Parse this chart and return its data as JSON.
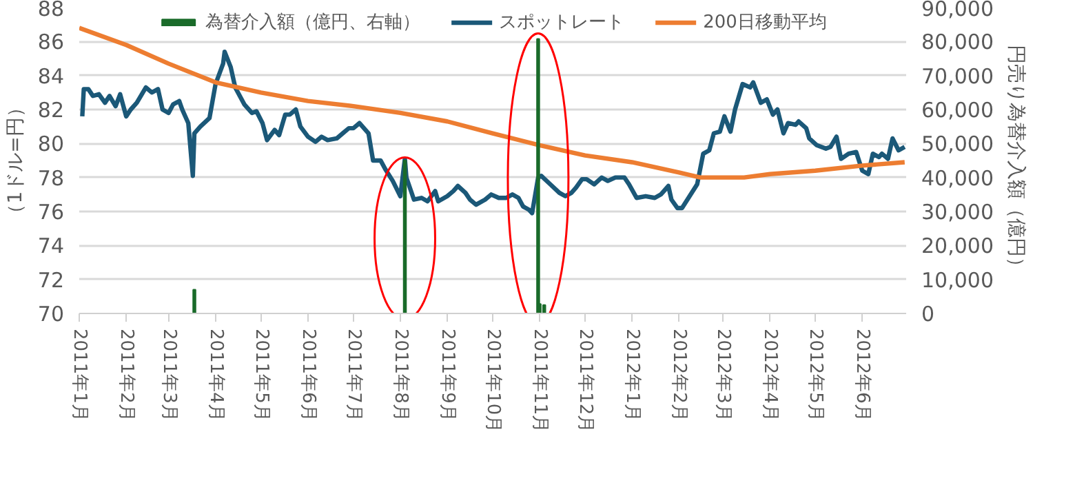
{
  "chart_data": {
    "type": "line",
    "ylabel": "（1ドル=円）",
    "y2label": "円売り為替介入額（億円）",
    "xlim": [
      "2011-01-01",
      "2012-06-30"
    ],
    "xticks": [
      {
        "value": "2011-01",
        "label": "2011年1月"
      },
      {
        "value": "2011-02",
        "label": "2011年2月"
      },
      {
        "value": "2011-03",
        "label": "2011年3月"
      },
      {
        "value": "2011-04",
        "label": "2011年4月"
      },
      {
        "value": "2011-05",
        "label": "2011年5月"
      },
      {
        "value": "2011-06",
        "label": "2011年6月"
      },
      {
        "value": "2011-07",
        "label": "2011年7月"
      },
      {
        "value": "2011-08",
        "label": "2011年8月"
      },
      {
        "value": "2011-09",
        "label": "2011年9月"
      },
      {
        "value": "2011-10",
        "label": "2011年10月"
      },
      {
        "value": "2011-11",
        "label": "2011年11月"
      },
      {
        "value": "2011-12",
        "label": "2011年12月"
      },
      {
        "value": "2012-01",
        "label": "2012年1月"
      },
      {
        "value": "2012-02",
        "label": "2012年2月"
      },
      {
        "value": "2012-03",
        "label": "2012年3月"
      },
      {
        "value": "2012-04",
        "label": "2012年4月"
      },
      {
        "value": "2012-05",
        "label": "2012年5月"
      },
      {
        "value": "2012-06",
        "label": "2012年6月"
      }
    ],
    "ylim": [
      70,
      88
    ],
    "yticks": [
      70,
      72,
      74,
      76,
      78,
      80,
      82,
      84,
      86,
      88
    ],
    "y2lim": [
      0,
      90000
    ],
    "y2ticks": [
      0,
      {
        "value": 10000,
        "label": "10,000"
      },
      {
        "value": 20000,
        "label": "20,000"
      },
      {
        "value": 30000,
        "label": "30,000"
      },
      {
        "value": 40000,
        "label": "40,000"
      },
      {
        "value": 50000,
        "label": "50,000"
      },
      {
        "value": 60000,
        "label": "60,000"
      },
      {
        "value": 70000,
        "label": "70,000"
      },
      {
        "value": 80000,
        "label": "80,000"
      },
      {
        "value": 90000,
        "label": "90,000"
      }
    ],
    "grid": "y",
    "legend": "top",
    "series": [
      {
        "name": "為替介入額（億円、右軸）",
        "type": "bar",
        "axis": "y2",
        "color": "#1a6b2a",
        "x": [
          "2011-03-18",
          "2011-08-04",
          "2011-10-31",
          "2011-11-01",
          "2011-11-04"
        ],
        "values": [
          7000,
          45000,
          80800,
          2800,
          2500
        ]
      },
      {
        "name": "スポットレート",
        "color": "#1b5878",
        "x": [
          "2011-01-03",
          "2011-01-04",
          "2011-01-07",
          "2011-01-10",
          "2011-01-14",
          "2011-01-18",
          "2011-01-21",
          "2011-01-25",
          "2011-01-28",
          "2011-02-01",
          "2011-02-04",
          "2011-02-08",
          "2011-02-14",
          "2011-02-18",
          "2011-02-22",
          "2011-02-25",
          "2011-03-01",
          "2011-03-04",
          "2011-03-08",
          "2011-03-10",
          "2011-03-14",
          "2011-03-17",
          "2011-03-18",
          "2011-03-22",
          "2011-03-28",
          "2011-04-01",
          "2011-04-06",
          "2011-04-07",
          "2011-04-11",
          "2011-04-14",
          "2011-04-20",
          "2011-04-25",
          "2011-04-28",
          "2011-05-02",
          "2011-05-05",
          "2011-05-10",
          "2011-05-13",
          "2011-05-17",
          "2011-05-20",
          "2011-05-24",
          "2011-05-27",
          "2011-06-01",
          "2011-06-06",
          "2011-06-10",
          "2011-06-14",
          "2011-06-20",
          "2011-06-24",
          "2011-06-28",
          "2011-07-01",
          "2011-07-05",
          "2011-07-11",
          "2011-07-14",
          "2011-07-19",
          "2011-07-22",
          "2011-07-27",
          "2011-08-01",
          "2011-08-04",
          "2011-08-05",
          "2011-08-10",
          "2011-08-15",
          "2011-08-19",
          "2011-08-24",
          "2011-08-26",
          "2011-09-01",
          "2011-09-05",
          "2011-09-08",
          "2011-09-13",
          "2011-09-16",
          "2011-09-20",
          "2011-09-26",
          "2011-09-30",
          "2011-10-05",
          "2011-10-10",
          "2011-10-14",
          "2011-10-18",
          "2011-10-21",
          "2011-10-25",
          "2011-10-27",
          "2011-10-31",
          "2011-11-02",
          "2011-11-08",
          "2011-11-14",
          "2011-11-18",
          "2011-11-22",
          "2011-11-25",
          "2011-11-29",
          "2011-12-02",
          "2011-12-07",
          "2011-12-12",
          "2011-12-16",
          "2011-12-21",
          "2011-12-27",
          "2011-12-30",
          "2012-01-04",
          "2012-01-10",
          "2012-01-16",
          "2012-01-20",
          "2012-01-25",
          "2012-01-27",
          "2012-01-31",
          "2012-02-03",
          "2012-02-08",
          "2012-02-13",
          "2012-02-15",
          "2012-02-17",
          "2012-02-21",
          "2012-02-24",
          "2012-02-28",
          "2012-03-02",
          "2012-03-06",
          "2012-03-09",
          "2012-03-14",
          "2012-03-19",
          "2012-03-21",
          "2012-03-26",
          "2012-03-30",
          "2012-04-03",
          "2012-04-06",
          "2012-04-10",
          "2012-04-13",
          "2012-04-18",
          "2012-04-20",
          "2012-04-25",
          "2012-04-27",
          "2012-05-02",
          "2012-05-08",
          "2012-05-11",
          "2012-05-15",
          "2012-05-18",
          "2012-05-23",
          "2012-05-28",
          "2012-06-01",
          "2012-06-05",
          "2012-06-08",
          "2012-06-12",
          "2012-06-14",
          "2012-06-18",
          "2012-06-21",
          "2012-06-25",
          "2012-06-29"
        ],
        "values": [
          81.6,
          83.2,
          83.2,
          82.8,
          82.9,
          82.4,
          82.8,
          82.2,
          82.9,
          81.6,
          82.0,
          82.4,
          83.3,
          83.0,
          83.2,
          82.0,
          81.8,
          82.3,
          82.5,
          82.0,
          81.2,
          78.1,
          80.6,
          81.0,
          81.5,
          83.5,
          84.7,
          85.4,
          84.5,
          83.3,
          82.3,
          81.8,
          81.9,
          81.2,
          80.2,
          80.8,
          80.5,
          81.7,
          81.7,
          82.0,
          81.0,
          80.4,
          80.1,
          80.4,
          80.2,
          80.3,
          80.6,
          80.9,
          80.9,
          81.2,
          80.6,
          79.0,
          79.0,
          78.5,
          77.8,
          76.9,
          79.1,
          78.0,
          76.7,
          76.8,
          76.6,
          77.2,
          76.6,
          76.9,
          77.2,
          77.5,
          77.1,
          76.7,
          76.4,
          76.7,
          77.0,
          76.8,
          76.8,
          77.0,
          76.8,
          76.3,
          76.1,
          75.9,
          78.0,
          78.1,
          77.6,
          77.1,
          76.9,
          77.1,
          77.4,
          77.9,
          77.9,
          77.6,
          78.0,
          77.8,
          78.0,
          78.0,
          77.6,
          76.8,
          76.9,
          76.8,
          77.0,
          77.5,
          76.7,
          76.2,
          76.2,
          76.9,
          77.6,
          78.5,
          79.4,
          79.6,
          80.6,
          80.7,
          81.6,
          80.7,
          82.0,
          83.5,
          83.3,
          83.6,
          82.4,
          82.6,
          81.7,
          82.0,
          80.6,
          81.2,
          81.1,
          81.3,
          80.9,
          80.3,
          79.9,
          79.7,
          79.8,
          80.4,
          79.1,
          79.4,
          79.5,
          78.4,
          78.2,
          79.4,
          79.2,
          79.4,
          79.1,
          80.3,
          79.6,
          79.8
        ]
      },
      {
        "name": "200日移動平均",
        "color": "#ed7d31",
        "x": [
          "2011-01-01",
          "2011-02-01",
          "2011-03-01",
          "2011-04-01",
          "2011-05-01",
          "2011-06-01",
          "2011-07-01",
          "2011-08-01",
          "2011-09-01",
          "2011-10-01",
          "2011-11-01",
          "2011-12-01",
          "2012-01-01",
          "2012-02-01",
          "2012-02-15",
          "2012-03-01",
          "2012-03-15",
          "2012-04-01",
          "2012-05-01",
          "2012-06-01",
          "2012-06-29"
        ],
        "values": [
          86.8,
          85.8,
          84.7,
          83.6,
          83.0,
          82.5,
          82.2,
          81.8,
          81.3,
          80.6,
          79.9,
          79.3,
          78.9,
          78.3,
          78.0,
          78.0,
          78.0,
          78.2,
          78.4,
          78.7,
          78.9
        ]
      }
    ]
  }
}
